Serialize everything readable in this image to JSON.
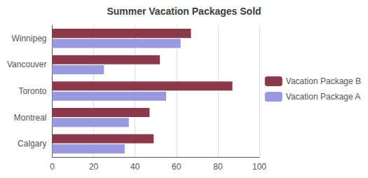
{
  "chart_data": {
    "type": "bar",
    "orientation": "horizontal",
    "title": "Summer Vacation Packages Sold",
    "categories": [
      "Winnipeg",
      "Vancouver",
      "Toronto",
      "Montreal",
      "Calgary"
    ],
    "series": [
      {
        "name": "Vacation Package B",
        "color": "#8B3A4A",
        "values": [
          67,
          52,
          87,
          47,
          49
        ]
      },
      {
        "name": "Vacation Package A",
        "color": "#9999DD",
        "values": [
          62,
          25,
          55,
          37,
          35
        ]
      }
    ],
    "xlim": [
      0,
      100
    ],
    "xticks": [
      0,
      20,
      40,
      60,
      80,
      100
    ],
    "grid": true,
    "legend": "right"
  }
}
